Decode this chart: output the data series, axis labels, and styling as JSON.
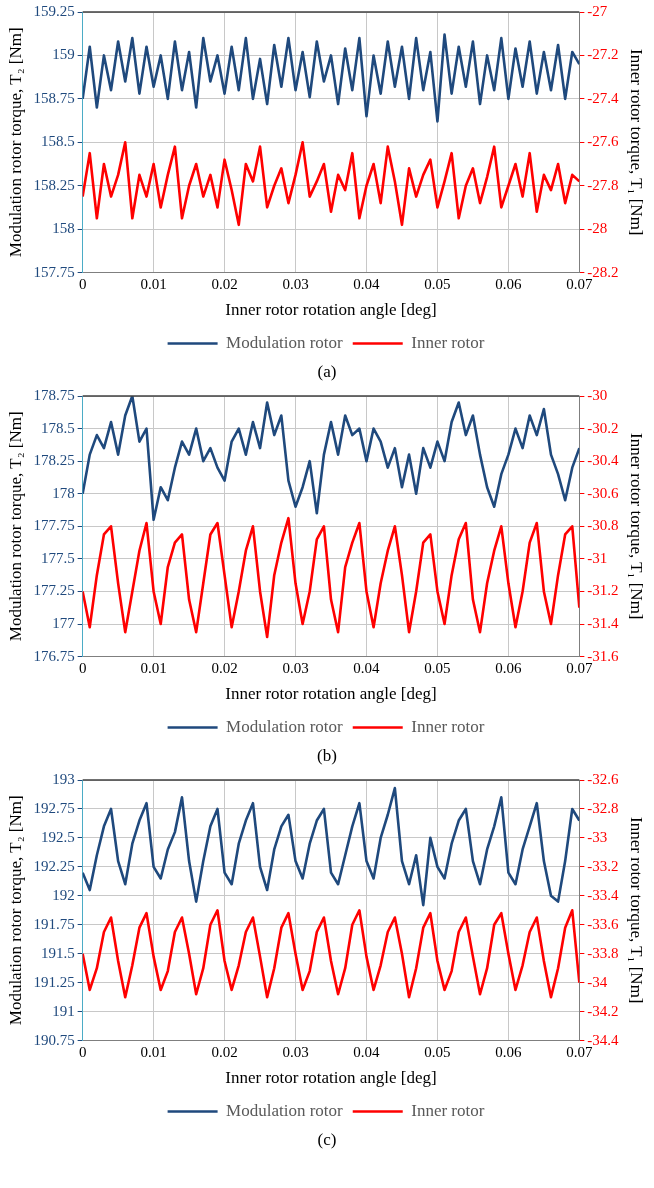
{
  "chart_data": [
    {
      "type": "line",
      "xlabel": "Inner rotor rotation angle [deg]",
      "ylabel": "Modulation rotor torque, T₂ [Nm]",
      "y2label": "Inner rotor torque, T₁ [Nm]",
      "annotations": [
        "(a)"
      ],
      "grid": true,
      "legend": "bottom",
      "xlim": [
        0,
        0.07
      ],
      "xticks": [
        0,
        0.01,
        0.02,
        0.03,
        0.04,
        0.05,
        0.06,
        0.07
      ],
      "ylim": [
        157.75,
        159.25
      ],
      "yticks": [
        157.75,
        158,
        158.25,
        158.5,
        158.75,
        159,
        159.25
      ],
      "y2lim": [
        -28.2,
        -27
      ],
      "y2ticks": [
        -28.2,
        -28,
        -27.8,
        -27.6,
        -27.4,
        -27.2,
        -27
      ],
      "x": [
        0,
        0.001,
        0.002,
        0.003,
        0.004,
        0.005,
        0.006,
        0.007,
        0.008,
        0.009,
        0.01,
        0.011,
        0.012,
        0.013,
        0.014,
        0.015,
        0.016,
        0.017,
        0.018,
        0.019,
        0.02,
        0.021,
        0.022,
        0.023,
        0.024,
        0.025,
        0.026,
        0.027,
        0.028,
        0.029,
        0.03,
        0.031,
        0.032,
        0.033,
        0.034,
        0.035,
        0.036,
        0.037,
        0.038,
        0.039,
        0.04,
        0.041,
        0.042,
        0.043,
        0.044,
        0.045,
        0.046,
        0.047,
        0.048,
        0.049,
        0.05,
        0.051,
        0.052,
        0.053,
        0.054,
        0.055,
        0.056,
        0.057,
        0.058,
        0.059,
        0.06,
        0.061,
        0.062,
        0.063,
        0.064,
        0.065,
        0.066,
        0.067,
        0.068,
        0.069,
        0.07
      ],
      "series": [
        {
          "name": "Modulation rotor",
          "color": "#1f497d",
          "values": [
            158.75,
            159.05,
            158.7,
            159.0,
            158.8,
            159.08,
            158.85,
            159.1,
            158.78,
            159.05,
            158.82,
            159.0,
            158.75,
            159.08,
            158.8,
            159.02,
            158.7,
            159.1,
            158.85,
            159.0,
            158.78,
            159.05,
            158.8,
            159.1,
            158.75,
            158.98,
            158.72,
            159.06,
            158.82,
            159.1,
            158.8,
            159.02,
            158.76,
            159.08,
            158.85,
            159.0,
            158.72,
            159.04,
            158.8,
            159.1,
            158.65,
            159.0,
            158.78,
            159.08,
            158.82,
            159.05,
            158.75,
            159.1,
            158.8,
            159.02,
            158.62,
            159.12,
            158.78,
            159.05,
            158.82,
            159.08,
            158.72,
            159.0,
            158.8,
            159.1,
            158.75,
            159.04,
            158.82,
            159.08,
            158.78,
            159.02,
            158.8,
            159.06,
            158.75,
            159.02,
            158.95
          ]
        },
        {
          "name": "Inner rotor",
          "color": "#ff0000",
          "axis": "y2",
          "values": [
            -27.85,
            -27.65,
            -27.95,
            -27.7,
            -27.85,
            -27.75,
            -27.6,
            -27.95,
            -27.75,
            -27.85,
            -27.7,
            -27.9,
            -27.75,
            -27.62,
            -27.95,
            -27.8,
            -27.7,
            -27.85,
            -27.75,
            -27.9,
            -27.68,
            -27.82,
            -27.98,
            -27.7,
            -27.78,
            -27.62,
            -27.9,
            -27.8,
            -27.72,
            -27.88,
            -27.75,
            -27.6,
            -27.85,
            -27.78,
            -27.7,
            -27.92,
            -27.75,
            -27.82,
            -27.65,
            -27.95,
            -27.8,
            -27.7,
            -27.88,
            -27.62,
            -27.78,
            -27.98,
            -27.72,
            -27.85,
            -27.75,
            -27.68,
            -27.9,
            -27.78,
            -27.65,
            -27.95,
            -27.8,
            -27.72,
            -27.88,
            -27.76,
            -27.62,
            -27.9,
            -27.8,
            -27.7,
            -27.85,
            -27.65,
            -27.92,
            -27.75,
            -27.82,
            -27.7,
            -27.88,
            -27.75,
            -27.78
          ]
        }
      ]
    },
    {
      "type": "line",
      "xlabel": "Inner rotor rotation angle [deg]",
      "ylabel": "Modulation rotor torque, T₂ [Nm]",
      "y2label": "Inner rotor torque, T₁ [Nm]",
      "annotations": [
        "(b)"
      ],
      "grid": true,
      "legend": "bottom",
      "xlim": [
        0,
        0.07
      ],
      "xticks": [
        0,
        0.01,
        0.02,
        0.03,
        0.04,
        0.05,
        0.06,
        0.07
      ],
      "ylim": [
        176.75,
        178.75
      ],
      "yticks": [
        176.75,
        177,
        177.25,
        177.5,
        177.75,
        178,
        178.25,
        178.5,
        178.75
      ],
      "y2lim": [
        -31.6,
        -30
      ],
      "y2ticks": [
        -31.6,
        -31.4,
        -31.2,
        -31,
        -30.8,
        -30.6,
        -30.4,
        -30.2,
        -30
      ],
      "x": [
        0,
        0.001,
        0.002,
        0.003,
        0.004,
        0.005,
        0.006,
        0.007,
        0.008,
        0.009,
        0.01,
        0.011,
        0.012,
        0.013,
        0.014,
        0.015,
        0.016,
        0.017,
        0.018,
        0.019,
        0.02,
        0.021,
        0.022,
        0.023,
        0.024,
        0.025,
        0.026,
        0.027,
        0.028,
        0.029,
        0.03,
        0.031,
        0.032,
        0.033,
        0.034,
        0.035,
        0.036,
        0.037,
        0.038,
        0.039,
        0.04,
        0.041,
        0.042,
        0.043,
        0.044,
        0.045,
        0.046,
        0.047,
        0.048,
        0.049,
        0.05,
        0.051,
        0.052,
        0.053,
        0.054,
        0.055,
        0.056,
        0.057,
        0.058,
        0.059,
        0.06,
        0.061,
        0.062,
        0.063,
        0.064,
        0.065,
        0.066,
        0.067,
        0.068,
        0.069,
        0.07
      ],
      "series": [
        {
          "name": "Modulation rotor",
          "color": "#1f497d",
          "values": [
            178.0,
            178.3,
            178.45,
            178.35,
            178.55,
            178.3,
            178.6,
            178.75,
            178.4,
            178.5,
            177.8,
            178.05,
            177.95,
            178.2,
            178.4,
            178.3,
            178.5,
            178.25,
            178.35,
            178.2,
            178.1,
            178.4,
            178.5,
            178.3,
            178.55,
            178.35,
            178.7,
            178.45,
            178.6,
            178.1,
            177.9,
            178.05,
            178.25,
            177.85,
            178.3,
            178.55,
            178.3,
            178.6,
            178.45,
            178.5,
            178.25,
            178.5,
            178.4,
            178.2,
            178.35,
            178.05,
            178.3,
            178.0,
            178.35,
            178.2,
            178.4,
            178.25,
            178.55,
            178.7,
            178.45,
            178.6,
            178.3,
            178.05,
            177.9,
            178.15,
            178.3,
            178.5,
            178.35,
            178.6,
            178.45,
            178.65,
            178.3,
            178.15,
            177.95,
            178.2,
            178.35
          ]
        },
        {
          "name": "Inner rotor",
          "color": "#ff0000",
          "axis": "y2",
          "values": [
            -31.2,
            -31.42,
            -31.1,
            -30.85,
            -30.8,
            -31.15,
            -31.45,
            -31.2,
            -30.95,
            -30.78,
            -31.2,
            -31.4,
            -31.05,
            -30.9,
            -30.85,
            -31.25,
            -31.45,
            -31.15,
            -30.85,
            -30.78,
            -31.1,
            -31.42,
            -31.2,
            -30.95,
            -30.8,
            -31.2,
            -31.48,
            -31.1,
            -30.9,
            -30.75,
            -31.15,
            -31.4,
            -31.2,
            -30.88,
            -30.8,
            -31.25,
            -31.45,
            -31.05,
            -30.9,
            -30.78,
            -31.2,
            -31.42,
            -31.15,
            -30.95,
            -30.8,
            -31.1,
            -31.45,
            -31.2,
            -30.9,
            -30.85,
            -31.2,
            -31.4,
            -31.1,
            -30.88,
            -30.78,
            -31.25,
            -31.45,
            -31.15,
            -30.95,
            -30.8,
            -31.15,
            -31.42,
            -31.2,
            -30.9,
            -30.78,
            -31.2,
            -31.4,
            -31.1,
            -30.85,
            -30.8,
            -31.3
          ]
        }
      ]
    },
    {
      "type": "line",
      "xlabel": "Inner rotor rotation angle [deg]",
      "ylabel": "Modulation rotor torque, T₂ [Nm]",
      "y2label": "Inner rotor torque, T₁ [Nm]",
      "annotations": [
        "(c)"
      ],
      "grid": true,
      "legend": "bottom",
      "xlim": [
        0,
        0.07
      ],
      "xticks": [
        0,
        0.01,
        0.02,
        0.03,
        0.04,
        0.05,
        0.06,
        0.07
      ],
      "ylim": [
        190.75,
        193
      ],
      "yticks": [
        190.75,
        191,
        191.25,
        191.5,
        191.75,
        192,
        192.25,
        192.5,
        192.75,
        193
      ],
      "y2lim": [
        -34.4,
        -32.6
      ],
      "y2ticks": [
        -34.4,
        -34.2,
        -34,
        -33.8,
        -33.6,
        -33.4,
        -33.2,
        -33,
        -32.8,
        -32.6
      ],
      "x": [
        0,
        0.001,
        0.002,
        0.003,
        0.004,
        0.005,
        0.006,
        0.007,
        0.008,
        0.009,
        0.01,
        0.011,
        0.012,
        0.013,
        0.014,
        0.015,
        0.016,
        0.017,
        0.018,
        0.019,
        0.02,
        0.021,
        0.022,
        0.023,
        0.024,
        0.025,
        0.026,
        0.027,
        0.028,
        0.029,
        0.03,
        0.031,
        0.032,
        0.033,
        0.034,
        0.035,
        0.036,
        0.037,
        0.038,
        0.039,
        0.04,
        0.041,
        0.042,
        0.043,
        0.044,
        0.045,
        0.046,
        0.047,
        0.048,
        0.049,
        0.05,
        0.051,
        0.052,
        0.053,
        0.054,
        0.055,
        0.056,
        0.057,
        0.058,
        0.059,
        0.06,
        0.061,
        0.062,
        0.063,
        0.064,
        0.065,
        0.066,
        0.067,
        0.068,
        0.069,
        0.07
      ],
      "series": [
        {
          "name": "Modulation rotor",
          "color": "#1f497d",
          "values": [
            192.2,
            192.05,
            192.35,
            192.6,
            192.75,
            192.3,
            192.1,
            192.45,
            192.65,
            192.8,
            192.25,
            192.15,
            192.4,
            192.55,
            192.85,
            192.3,
            191.95,
            192.3,
            192.6,
            192.75,
            192.2,
            192.1,
            192.45,
            192.65,
            192.8,
            192.25,
            192.05,
            192.4,
            192.6,
            192.7,
            192.3,
            192.15,
            192.45,
            192.65,
            192.75,
            192.2,
            192.1,
            192.35,
            192.6,
            192.8,
            192.3,
            192.15,
            192.5,
            192.7,
            192.93,
            192.3,
            192.1,
            192.35,
            191.92,
            192.5,
            192.25,
            192.15,
            192.45,
            192.65,
            192.75,
            192.3,
            192.1,
            192.4,
            192.6,
            192.85,
            192.2,
            192.1,
            192.4,
            192.6,
            192.8,
            192.3,
            192.0,
            191.95,
            192.3,
            192.75,
            192.65
          ]
        },
        {
          "name": "Inner rotor",
          "color": "#ff0000",
          "axis": "y2",
          "values": [
            -33.8,
            -34.05,
            -33.9,
            -33.65,
            -33.55,
            -33.85,
            -34.1,
            -33.88,
            -33.62,
            -33.52,
            -33.82,
            -34.05,
            -33.92,
            -33.65,
            -33.55,
            -33.8,
            -34.08,
            -33.9,
            -33.6,
            -33.5,
            -33.85,
            -34.05,
            -33.88,
            -33.65,
            -33.55,
            -33.82,
            -34.1,
            -33.9,
            -33.62,
            -33.52,
            -33.8,
            -34.05,
            -33.92,
            -33.65,
            -33.55,
            -33.85,
            -34.08,
            -33.9,
            -33.6,
            -33.5,
            -33.82,
            -34.05,
            -33.88,
            -33.65,
            -33.55,
            -33.8,
            -34.1,
            -33.9,
            -33.62,
            -33.52,
            -33.85,
            -34.05,
            -33.92,
            -33.65,
            -33.55,
            -33.82,
            -34.08,
            -33.9,
            -33.6,
            -33.52,
            -33.8,
            -34.05,
            -33.88,
            -33.65,
            -33.55,
            -33.85,
            -34.1,
            -33.9,
            -33.62,
            -33.5,
            -34.0
          ]
        }
      ]
    }
  ]
}
